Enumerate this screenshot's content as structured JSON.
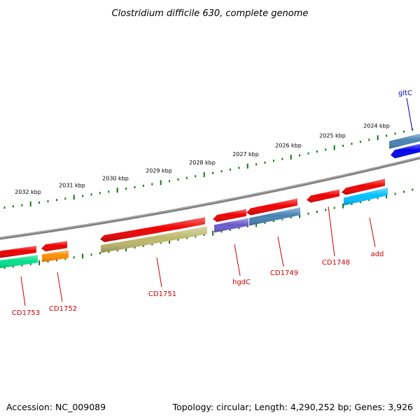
{
  "title": "Clostridium difficile 630, complete genome",
  "footer": {
    "accession": "Accession: NC_009089",
    "summary": "Topology: circular; Length: 4,290,252 bp; Genes: 3,926"
  },
  "colors": {
    "backbone": "#7f7f7f",
    "ticks": "#117711",
    "label_red": "#cc0000",
    "label_blue": "#0000cc"
  },
  "scale": {
    "unit": "kbp",
    "outer_ticks": [
      "2024",
      "2025",
      "2026",
      "2027",
      "2028",
      "2029",
      "2030",
      "2031",
      "2032"
    ]
  },
  "genes": {
    "top": [
      {
        "name": "gltC",
        "color": "#0000ee",
        "label_color": "#0000cc"
      },
      {
        "name": "",
        "color": "#4682b4"
      }
    ],
    "bottom": [
      {
        "name": "add",
        "color": "#00bfff"
      },
      {
        "name": "CD1748",
        "color": ""
      },
      {
        "name": "CD1749",
        "color": "#4682b4"
      },
      {
        "name": "hgdC",
        "color": "#6a5acd"
      },
      {
        "name": "CD1751",
        "color": "#bdb76b"
      },
      {
        "name": "CD1752",
        "color": "#ff8c00"
      },
      {
        "name": "CD1753",
        "color": "#00e08a"
      }
    ],
    "cds_color": "#ee0000"
  }
}
